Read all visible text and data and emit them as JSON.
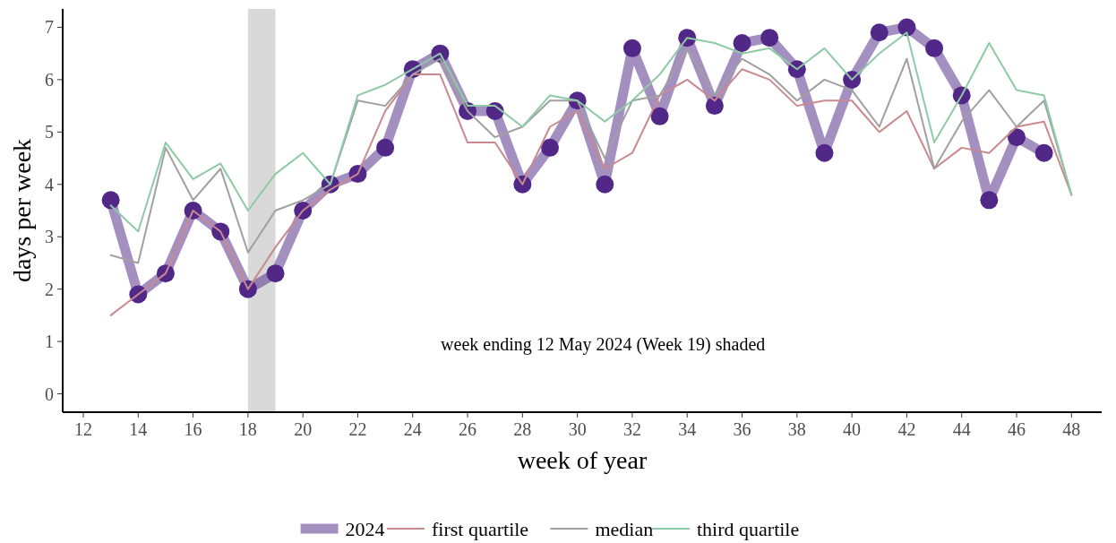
{
  "chart_data": {
    "type": "line",
    "xlabel": "week of year",
    "ylabel": "days per week",
    "xlim": [
      11.25,
      49.1
    ],
    "ylim": [
      -0.35,
      7.35
    ],
    "xticks": [
      12,
      14,
      16,
      18,
      20,
      22,
      24,
      26,
      28,
      30,
      32,
      34,
      36,
      38,
      40,
      42,
      44,
      46,
      48
    ],
    "yticks": [
      0,
      1,
      2,
      3,
      4,
      5,
      6,
      7
    ],
    "grid": false,
    "legend": "bottom",
    "bands": [
      {
        "axis": "x",
        "from": 18,
        "to": 19,
        "color": "#d9d9d9"
      }
    ],
    "annotations": [
      "week ending 12 May 2024 (Week 19) shaded"
    ],
    "series": [
      {
        "name": "2024",
        "color": "#512888",
        "marker": "circle",
        "x": [
          13,
          14,
          15,
          16,
          17,
          18,
          19,
          20,
          21,
          22,
          23,
          24,
          25,
          26,
          27,
          28,
          29,
          30,
          31,
          32,
          33,
          34,
          35,
          36,
          37,
          38,
          39,
          40,
          41,
          42,
          43,
          44,
          45,
          46,
          47
        ],
        "values": [
          3.7,
          1.9,
          2.3,
          3.5,
          3.1,
          2.0,
          2.3,
          3.5,
          4.0,
          4.2,
          4.7,
          6.2,
          6.5,
          5.4,
          5.4,
          4.0,
          4.7,
          5.6,
          4.0,
          6.6,
          5.3,
          6.8,
          5.5,
          6.7,
          6.8,
          6.2,
          4.6,
          6.0,
          6.9,
          7.0,
          6.6,
          5.7,
          3.7,
          4.9,
          4.6
        ]
      },
      {
        "name": "first quartile",
        "color": "#c98a8f",
        "marker": "none",
        "x": [
          13,
          14,
          15,
          16,
          17,
          18,
          19,
          20,
          21,
          22,
          23,
          24,
          25,
          26,
          27,
          28,
          29,
          30,
          31,
          32,
          33,
          34,
          35,
          36,
          37,
          38,
          39,
          40,
          41,
          42,
          43,
          44,
          45,
          46,
          47,
          48
        ],
        "values": [
          1.5,
          1.9,
          2.3,
          3.5,
          3.1,
          2.0,
          2.8,
          3.5,
          3.9,
          4.2,
          5.4,
          6.1,
          6.1,
          4.8,
          4.8,
          4.0,
          5.1,
          5.4,
          4.3,
          4.6,
          5.7,
          6.0,
          5.6,
          6.2,
          6.0,
          5.5,
          5.6,
          5.6,
          5.0,
          5.4,
          4.3,
          4.7,
          4.6,
          5.1,
          5.2,
          3.8
        ]
      },
      {
        "name": "median",
        "color": "#a0a0a0",
        "marker": "none",
        "x": [
          13,
          14,
          15,
          16,
          17,
          18,
          19,
          20,
          21,
          22,
          23,
          24,
          25,
          26,
          27,
          28,
          29,
          30,
          31,
          32,
          33,
          34,
          35,
          36,
          37,
          38,
          39,
          40,
          41,
          42,
          43,
          44,
          45,
          46,
          47,
          48
        ],
        "values": [
          2.65,
          2.5,
          4.7,
          3.7,
          4.3,
          2.7,
          3.5,
          3.7,
          4.0,
          5.6,
          5.5,
          6.1,
          6.4,
          5.4,
          4.9,
          5.1,
          5.6,
          5.6,
          4.5,
          5.6,
          5.7,
          6.6,
          5.7,
          6.4,
          6.1,
          5.6,
          6.0,
          5.8,
          5.1,
          6.4,
          4.3,
          5.2,
          5.8,
          5.1,
          5.6,
          3.8
        ]
      },
      {
        "name": "third quartile",
        "color": "#8fcaa6",
        "marker": "none",
        "x": [
          13,
          14,
          15,
          16,
          17,
          18,
          19,
          20,
          21,
          22,
          23,
          24,
          25,
          26,
          27,
          28,
          29,
          30,
          31,
          32,
          33,
          34,
          35,
          36,
          37,
          38,
          39,
          40,
          41,
          42,
          43,
          44,
          45,
          46,
          47,
          48
        ],
        "values": [
          3.6,
          3.1,
          4.8,
          4.1,
          4.4,
          3.5,
          4.2,
          4.6,
          4.0,
          5.7,
          5.9,
          6.2,
          6.5,
          5.5,
          5.5,
          5.1,
          5.7,
          5.6,
          5.2,
          5.6,
          6.1,
          6.8,
          6.7,
          6.5,
          6.6,
          6.2,
          6.6,
          6.0,
          6.5,
          6.9,
          4.8,
          5.7,
          6.7,
          5.8,
          5.7,
          3.8
        ]
      }
    ]
  }
}
